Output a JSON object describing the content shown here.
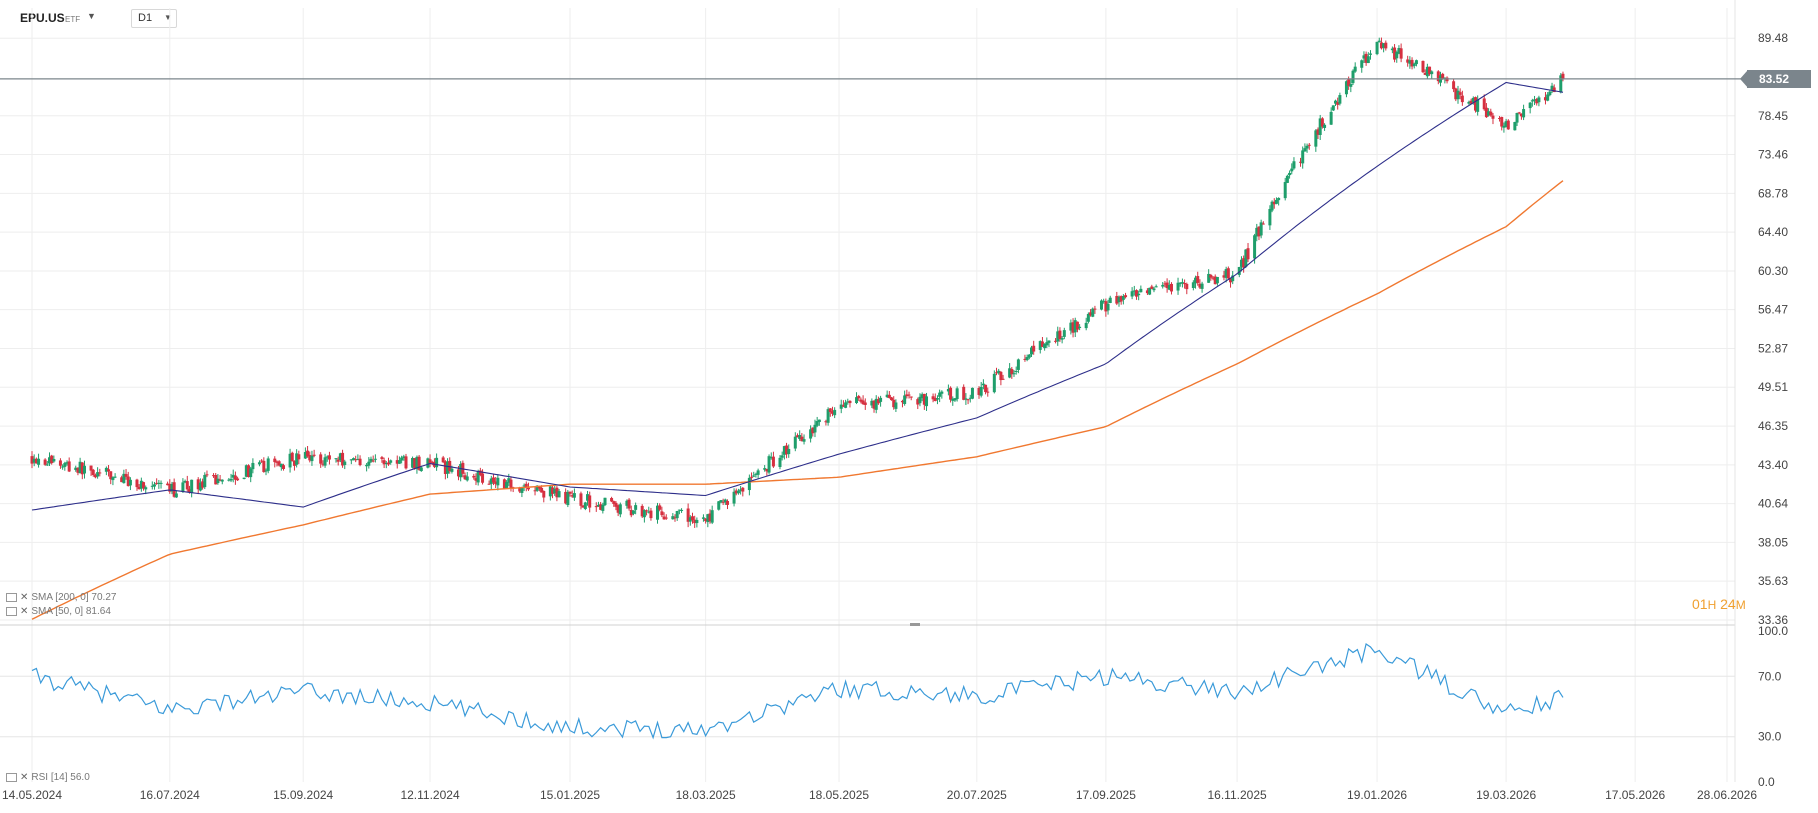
{
  "toolbar": {
    "symbol": "EPU.US",
    "symbol_type": "ETF",
    "interval": "D1",
    "countdown_h": "01",
    "countdown_h_unit": "H",
    "countdown_m": "24",
    "countdown_m_unit": "M"
  },
  "colors": {
    "up": "#1f9e6b",
    "down": "#d63040",
    "sma50": "#2d2e8a",
    "sma200": "#f07830",
    "rsi": "#3a9ad9",
    "last_price_line": "#7b858c"
  },
  "chart_data": [
    {
      "type": "candlestick",
      "title": "EPU.US",
      "timeframe": "D1",
      "x_tick_labels": [
        "14.05.2024",
        "16.07.2024",
        "15.09.2024",
        "12.11.2024",
        "15.01.2025",
        "18.03.2025",
        "18.05.2025",
        "20.07.2025",
        "17.09.2025",
        "16.11.2025",
        "19.01.2026",
        "19.03.2026",
        "17.05.2026",
        "28.06.2026"
      ],
      "y_tick_labels": [
        "89.48",
        "83.52",
        "78.45",
        "73.46",
        "68.78",
        "64.40",
        "60.30",
        "56.47",
        "52.87",
        "49.51",
        "46.35",
        "43.40",
        "40.64",
        "38.05",
        "35.63",
        "33.36"
      ],
      "ylim": [
        33.36,
        92.6
      ],
      "grid": true,
      "last_price": 83.52,
      "series": [
        {
          "name": "SMA [200, 0] 70.27",
          "type": "line",
          "last_value": 70.27,
          "key_points": [
            [
              "14.05.2024",
              33.4
            ],
            [
              "16.07.2024",
              37.3
            ],
            [
              "15.09.2024",
              39.2
            ],
            [
              "12.11.2024",
              41.3
            ],
            [
              "15.01.2025",
              42.0
            ],
            [
              "18.03.2025",
              42.0
            ],
            [
              "18.05.2025",
              42.5
            ],
            [
              "20.07.2025",
              44.0
            ],
            [
              "17.09.2025",
              46.3
            ],
            [
              "16.11.2025",
              51.5
            ],
            [
              "19.01.2026",
              58.0
            ],
            [
              "19.03.2026",
              65.0
            ],
            [
              "14.04.2026",
              70.27
            ]
          ]
        },
        {
          "name": "SMA [50, 0] 81.64",
          "type": "line",
          "last_value": 81.64,
          "key_points": [
            [
              "14.05.2024",
              40.2
            ],
            [
              "16.07.2024",
              41.6
            ],
            [
              "15.09.2024",
              40.4
            ],
            [
              "12.11.2024",
              43.5
            ],
            [
              "15.01.2025",
              41.8
            ],
            [
              "18.03.2025",
              41.2
            ],
            [
              "18.05.2025",
              44.2
            ],
            [
              "20.07.2025",
              47.0
            ],
            [
              "17.09.2025",
              51.5
            ],
            [
              "16.11.2025",
              60.0
            ],
            [
              "19.01.2026",
              72.0
            ],
            [
              "19.03.2026",
              83.0
            ],
            [
              "14.04.2026",
              81.64
            ]
          ]
        }
      ],
      "price_path": [
        [
          "14.05.2024",
          44.0
        ],
        [
          "16.07.2024",
          41.5
        ],
        [
          "15.09.2024",
          44.0
        ],
        [
          "12.11.2024",
          43.5
        ],
        [
          "15.01.2025",
          41.0
        ],
        [
          "18.03.2025",
          39.5
        ],
        [
          "18.05.2025",
          48.0
        ],
        [
          "20.07.2025",
          49.0
        ],
        [
          "17.09.2025",
          57.0
        ],
        [
          "16.11.2025",
          60.0
        ],
        [
          "19.01.2026",
          89.0
        ],
        [
          "19.03.2026",
          77.0
        ],
        [
          "14.04.2026",
          83.52
        ]
      ]
    },
    {
      "type": "line",
      "title": "RSI [14] 56.0",
      "y_tick_labels": [
        "100.0",
        "70.0",
        "30.0",
        "0.0"
      ],
      "ylim": [
        0,
        100
      ],
      "last_value": 56.0,
      "series": [
        {
          "name": "RSI [14] 56.0",
          "key_points": [
            [
              "14.05.2024",
              70
            ],
            [
              "16.07.2024",
              48
            ],
            [
              "15.09.2024",
              60
            ],
            [
              "12.11.2024",
              52
            ],
            [
              "15.01.2025",
              36
            ],
            [
              "18.03.2025",
              35
            ],
            [
              "18.05.2025",
              62
            ],
            [
              "20.07.2025",
              57
            ],
            [
              "17.09.2025",
              70
            ],
            [
              "16.11.2025",
              60
            ],
            [
              "19.01.2026",
              88
            ],
            [
              "19.03.2026",
              45
            ],
            [
              "14.04.2026",
              56
            ]
          ]
        }
      ]
    }
  ]
}
